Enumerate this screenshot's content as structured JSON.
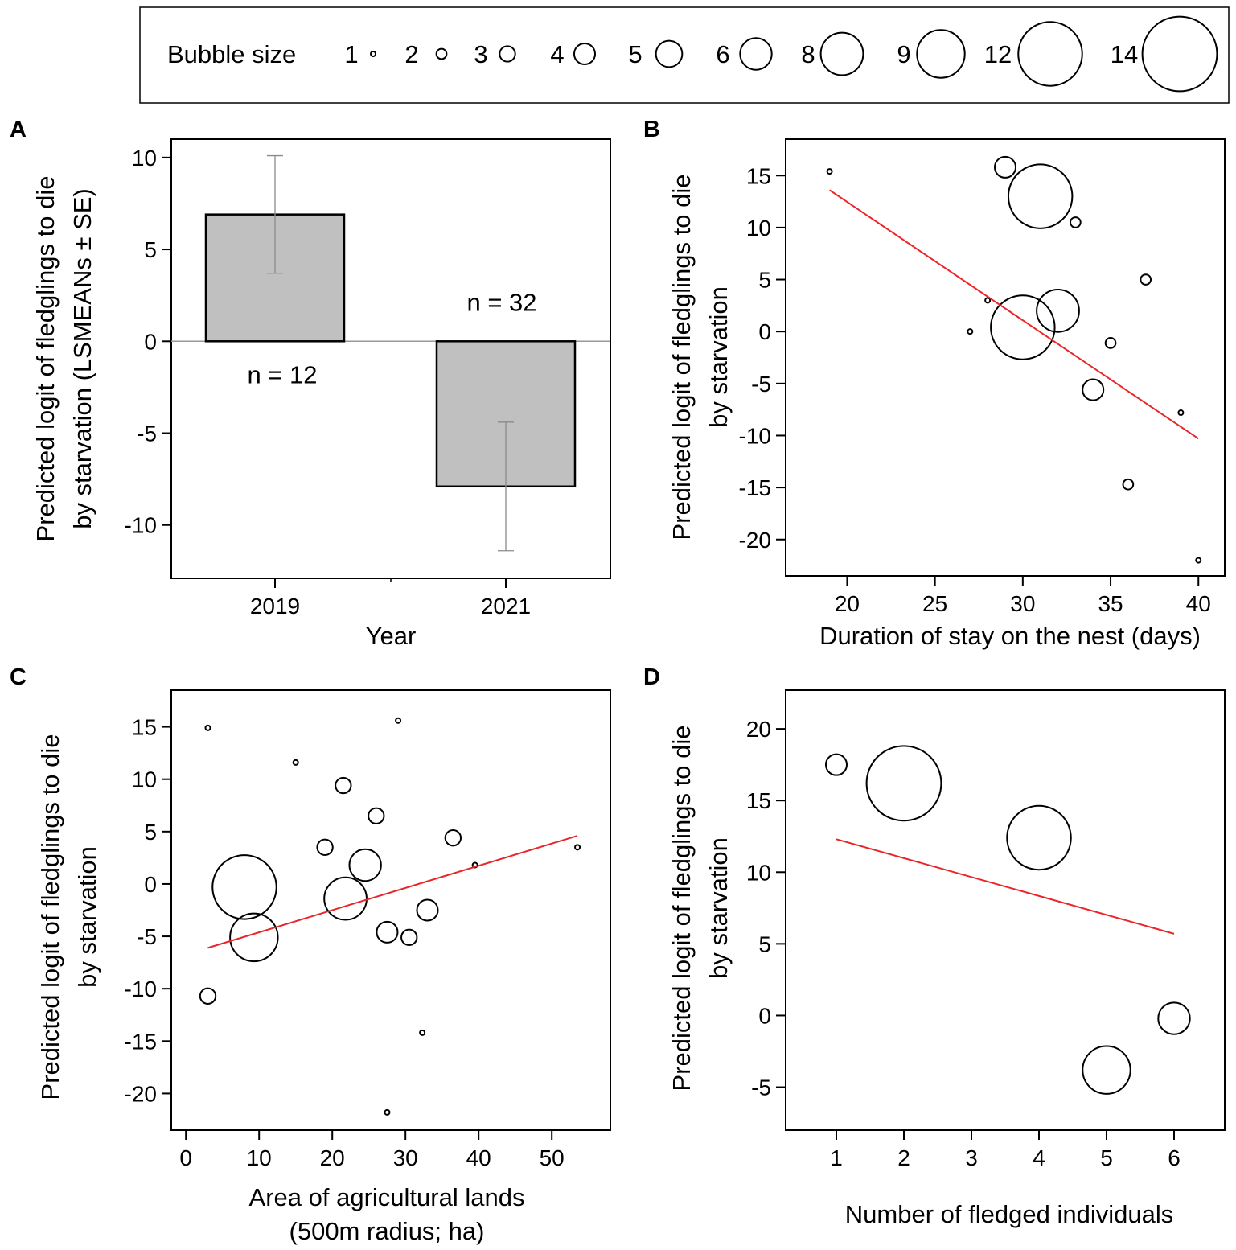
{
  "legend": {
    "title": "Bubble size",
    "sizes": [
      "1",
      "2",
      "3",
      "4",
      "5",
      "6",
      "8",
      "9",
      "12",
      "14"
    ]
  },
  "colors": {
    "fit_line": "#e8262a",
    "bar_fill": "#c0c0c0",
    "error_bar": "#8a8a8a"
  },
  "chart_data": [
    {
      "panel": "A",
      "type": "bar",
      "categories": [
        "2019",
        "2021"
      ],
      "values": [
        6.9,
        -7.9
      ],
      "se_lower": [
        3.7,
        -11.4
      ],
      "se_upper": [
        10.1,
        -4.4
      ],
      "n_labels": [
        "n = 12",
        "n = 32"
      ],
      "xlabel": "Year",
      "ylabel_lines": [
        "Predicted logit of fledglings to die",
        "by starvation (LSMEANs ± SE)"
      ],
      "yticks": [
        "10",
        "5",
        "0",
        "-5",
        "-10"
      ],
      "ylim": [
        -12.9,
        11
      ]
    },
    {
      "panel": "B",
      "type": "scatter",
      "xlabel": "Duration of stay on the nest (days)",
      "ylabel_lines": [
        "Predicted logit of fledglings to die",
        "by starvation"
      ],
      "xticks": [
        "20",
        "25",
        "30",
        "35",
        "40"
      ],
      "yticks": [
        "15",
        "10",
        "5",
        "0",
        "-5",
        "-10",
        "-15",
        "-20"
      ],
      "xlim": [
        16.5,
        41.5
      ],
      "ylim": [
        -23.5,
        18.5
      ],
      "points": [
        {
          "x": 19,
          "y": 15.4,
          "size": 1
        },
        {
          "x": 29,
          "y": 15.8,
          "size": 4
        },
        {
          "x": 31,
          "y": 13,
          "size": 12
        },
        {
          "x": 33,
          "y": 10.5,
          "size": 2
        },
        {
          "x": 37,
          "y": 5,
          "size": 2
        },
        {
          "x": 28,
          "y": 3,
          "size": 1
        },
        {
          "x": 32,
          "y": 2,
          "size": 8
        },
        {
          "x": 27,
          "y": 0,
          "size": 1
        },
        {
          "x": 30,
          "y": 0.4,
          "size": 12
        },
        {
          "x": 35,
          "y": -1.1,
          "size": 2
        },
        {
          "x": 34,
          "y": -5.6,
          "size": 4
        },
        {
          "x": 39,
          "y": -7.8,
          "size": 1
        },
        {
          "x": 36,
          "y": -14.7,
          "size": 2
        },
        {
          "x": 40,
          "y": -22,
          "size": 1
        }
      ],
      "fit_line": {
        "x": [
          19,
          40
        ],
        "y": [
          13.6,
          -10.3
        ]
      }
    },
    {
      "panel": "C",
      "type": "scatter",
      "xlabel_lines": [
        "Area of agricultural lands",
        "(500m radius; ha)"
      ],
      "ylabel_lines": [
        "Predicted logit of fledglings to die",
        "by starvation"
      ],
      "xticks": [
        "0",
        "10",
        "20",
        "30",
        "40",
        "50"
      ],
      "yticks": [
        "15",
        "10",
        "5",
        "0",
        "-5",
        "-10",
        "-15",
        "-20"
      ],
      "xlim": [
        -2,
        58
      ],
      "ylim": [
        -23.5,
        18.5
      ],
      "points": [
        {
          "x": 3,
          "y": 14.9,
          "size": 1
        },
        {
          "x": 29,
          "y": 15.6,
          "size": 1
        },
        {
          "x": 15,
          "y": 11.6,
          "size": 1
        },
        {
          "x": 21.5,
          "y": 9.4,
          "size": 3
        },
        {
          "x": 26,
          "y": 6.5,
          "size": 3
        },
        {
          "x": 36.5,
          "y": 4.4,
          "size": 3
        },
        {
          "x": 19,
          "y": 3.5,
          "size": 3
        },
        {
          "x": 53.5,
          "y": 3.5,
          "size": 1
        },
        {
          "x": 39.5,
          "y": 1.8,
          "size": 1
        },
        {
          "x": 24.5,
          "y": 1.8,
          "size": 6
        },
        {
          "x": 8,
          "y": -0.3,
          "size": 12
        },
        {
          "x": 21.8,
          "y": -1.4,
          "size": 8
        },
        {
          "x": 33,
          "y": -2.5,
          "size": 4
        },
        {
          "x": 27.5,
          "y": -4.6,
          "size": 4
        },
        {
          "x": 30.5,
          "y": -5.1,
          "size": 3
        },
        {
          "x": 9.3,
          "y": -5.1,
          "size": 9
        },
        {
          "x": 3,
          "y": -10.7,
          "size": 3
        },
        {
          "x": 32.3,
          "y": -14.2,
          "size": 1
        },
        {
          "x": 27.5,
          "y": -21.8,
          "size": 1
        }
      ],
      "fit_line": {
        "x": [
          3,
          53.5
        ],
        "y": [
          -6.1,
          4.6
        ]
      }
    },
    {
      "panel": "D",
      "type": "scatter",
      "xlabel": "Number of fledged individuals",
      "ylabel_lines": [
        "Predicted logit of fledglings to die",
        "by starvation"
      ],
      "xticks": [
        "1",
        "2",
        "3",
        "4",
        "5",
        "6"
      ],
      "yticks": [
        "20",
        "15",
        "10",
        "5",
        "0",
        "-5"
      ],
      "xlim": [
        0.25,
        6.75
      ],
      "ylim": [
        -8,
        22.7
      ],
      "points": [
        {
          "x": 1,
          "y": 17.5,
          "size": 4
        },
        {
          "x": 2,
          "y": 16.2,
          "size": 14
        },
        {
          "x": 4,
          "y": 12.4,
          "size": 12
        },
        {
          "x": 6,
          "y": -0.2,
          "size": 6
        },
        {
          "x": 5,
          "y": -3.8,
          "size": 9
        }
      ],
      "fit_line": {
        "x": [
          1,
          6
        ],
        "y": [
          12.3,
          5.7
        ]
      }
    }
  ]
}
